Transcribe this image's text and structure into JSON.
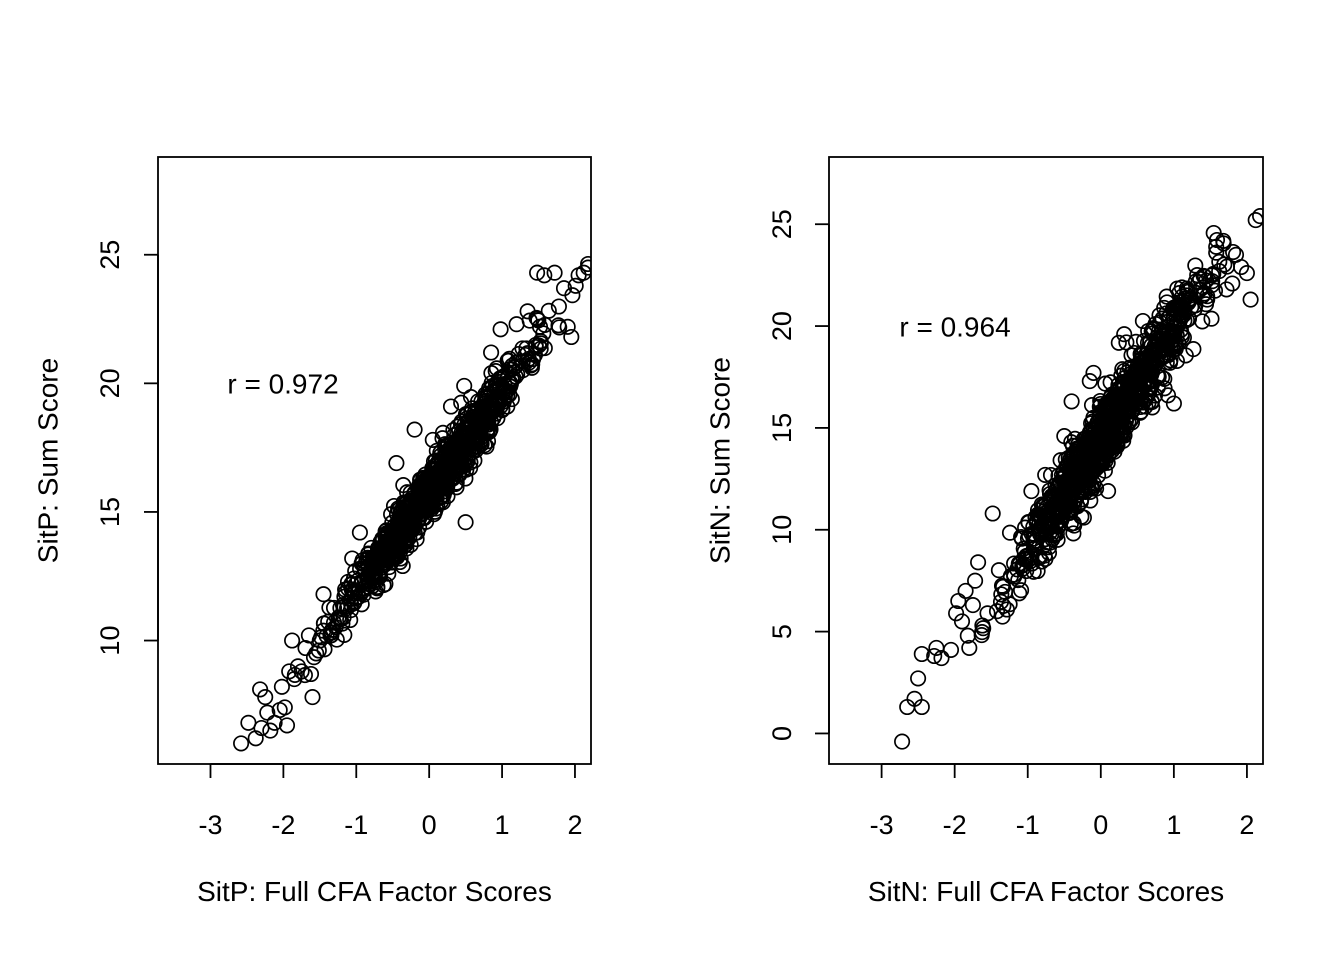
{
  "chart_data": [
    {
      "type": "scatter",
      "title": "",
      "xlabel": "SitP: Full CFA Factor Scores",
      "ylabel": "SitP: Sum Score",
      "annotation": "r = 0.972",
      "correlation": 0.972,
      "xlim": [
        -3.72,
        2.22
      ],
      "ylim": [
        5.2,
        28.8
      ],
      "x_ticks": [
        -3,
        -2,
        -1,
        0,
        1,
        2
      ],
      "x_tick_labels": [
        "-3",
        "-2",
        "-1",
        "0",
        "1",
        "2"
      ],
      "y_ticks": [
        10,
        15,
        20,
        25
      ],
      "y_tick_labels": [
        "10",
        "15",
        "20",
        "25"
      ],
      "grid": false,
      "marker": "open-circle",
      "trend": {
        "slope": 3.85,
        "intercept": 15.8,
        "noise_sd": 0.5
      },
      "n_points": 1100,
      "points": [
        [
          -2.58,
          6.0
        ],
        [
          -2.48,
          6.8
        ],
        [
          -2.38,
          6.2
        ],
        [
          -2.32,
          8.1
        ],
        [
          -2.3,
          6.6
        ],
        [
          -2.25,
          7.8
        ],
        [
          -2.22,
          7.2
        ],
        [
          -2.18,
          6.5
        ],
        [
          -2.12,
          6.8
        ],
        [
          -2.05,
          7.3
        ],
        [
          -2.02,
          8.2
        ],
        [
          -1.98,
          7.4
        ],
        [
          -1.95,
          6.7
        ],
        [
          -1.92,
          8.8
        ],
        [
          -1.88,
          10.0
        ],
        [
          -1.85,
          8.5
        ],
        [
          -1.8,
          9.0
        ],
        [
          -1.75,
          8.8
        ],
        [
          -1.65,
          10.2
        ],
        [
          -1.6,
          7.8
        ],
        [
          -1.55,
          9.5
        ],
        [
          -1.5,
          10.0
        ],
        [
          -1.45,
          11.8
        ],
        [
          -0.95,
          14.2
        ],
        [
          -0.45,
          16.9
        ],
        [
          -0.6,
          12.2
        ],
        [
          -0.2,
          18.2
        ],
        [
          0.05,
          17.8
        ],
        [
          0.3,
          19.1
        ],
        [
          0.48,
          19.9
        ],
        [
          0.5,
          14.6
        ],
        [
          0.62,
          17.0
        ],
        [
          0.85,
          21.2
        ],
        [
          0.98,
          22.1
        ],
        [
          1.2,
          22.3
        ],
        [
          1.35,
          22.8
        ],
        [
          1.45,
          21.1
        ],
        [
          1.48,
          24.3
        ],
        [
          1.58,
          24.2
        ],
        [
          1.72,
          24.3
        ],
        [
          1.85,
          23.7
        ],
        [
          1.9,
          22.2
        ],
        [
          1.95,
          21.8
        ],
        [
          2.05,
          24.2
        ],
        [
          2.12,
          24.3
        ],
        [
          2.18,
          24.5
        ]
      ]
    },
    {
      "type": "scatter",
      "title": "",
      "xlabel": "SitN: Full CFA Factor Scores",
      "ylabel": "SitN: Sum Score",
      "annotation": "r = 0.964",
      "correlation": 0.964,
      "xlim": [
        -3.72,
        2.22
      ],
      "ylim": [
        -1.5,
        28.3
      ],
      "x_ticks": [
        -3,
        -2,
        -1,
        0,
        1,
        2
      ],
      "x_tick_labels": [
        "-3",
        "-2",
        "-1",
        "0",
        "1",
        "2"
      ],
      "y_ticks": [
        0,
        5,
        10,
        15,
        20,
        25
      ],
      "y_tick_labels": [
        "0",
        "5",
        "10",
        "15",
        "20",
        "25"
      ],
      "grid": false,
      "marker": "open-circle",
      "trend": {
        "slope": 5.4,
        "intercept": 14.4,
        "noise_sd": 0.85
      },
      "n_points": 1100,
      "points": [
        [
          -2.72,
          -0.4
        ],
        [
          -2.65,
          1.3
        ],
        [
          -2.55,
          1.7
        ],
        [
          -2.5,
          2.7
        ],
        [
          -2.45,
          1.3
        ],
        [
          -2.45,
          3.9
        ],
        [
          -2.28,
          3.8
        ],
        [
          -2.25,
          4.2
        ],
        [
          -2.18,
          3.7
        ],
        [
          -2.05,
          4.1
        ],
        [
          -1.98,
          5.9
        ],
        [
          -1.95,
          6.5
        ],
        [
          -1.9,
          5.5
        ],
        [
          -1.85,
          7.0
        ],
        [
          -1.82,
          4.8
        ],
        [
          -1.8,
          4.2
        ],
        [
          -1.75,
          6.3
        ],
        [
          -1.72,
          7.5
        ],
        [
          -1.68,
          8.4
        ],
        [
          -1.62,
          5.3
        ],
        [
          -1.55,
          5.9
        ],
        [
          -1.48,
          10.8
        ],
        [
          -1.42,
          6.0
        ],
        [
          -0.95,
          11.9
        ],
        [
          -0.5,
          14.6
        ],
        [
          -0.4,
          16.3
        ],
        [
          -0.15,
          17.3
        ],
        [
          -0.1,
          17.7
        ],
        [
          0.32,
          19.6
        ],
        [
          0.1,
          11.9
        ],
        [
          0.55,
          15.8
        ],
        [
          0.75,
          20.1
        ],
        [
          0.92,
          16.6
        ],
        [
          1.0,
          16.2
        ],
        [
          1.1,
          21.0
        ],
        [
          1.32,
          22.5
        ],
        [
          1.42,
          21.6
        ],
        [
          1.58,
          23.6
        ],
        [
          1.62,
          22.7
        ],
        [
          1.72,
          21.8
        ],
        [
          1.85,
          23.5
        ],
        [
          1.92,
          22.9
        ],
        [
          2.0,
          22.6
        ],
        [
          2.05,
          21.3
        ],
        [
          2.12,
          25.2
        ],
        [
          2.18,
          25.4
        ]
      ]
    }
  ]
}
